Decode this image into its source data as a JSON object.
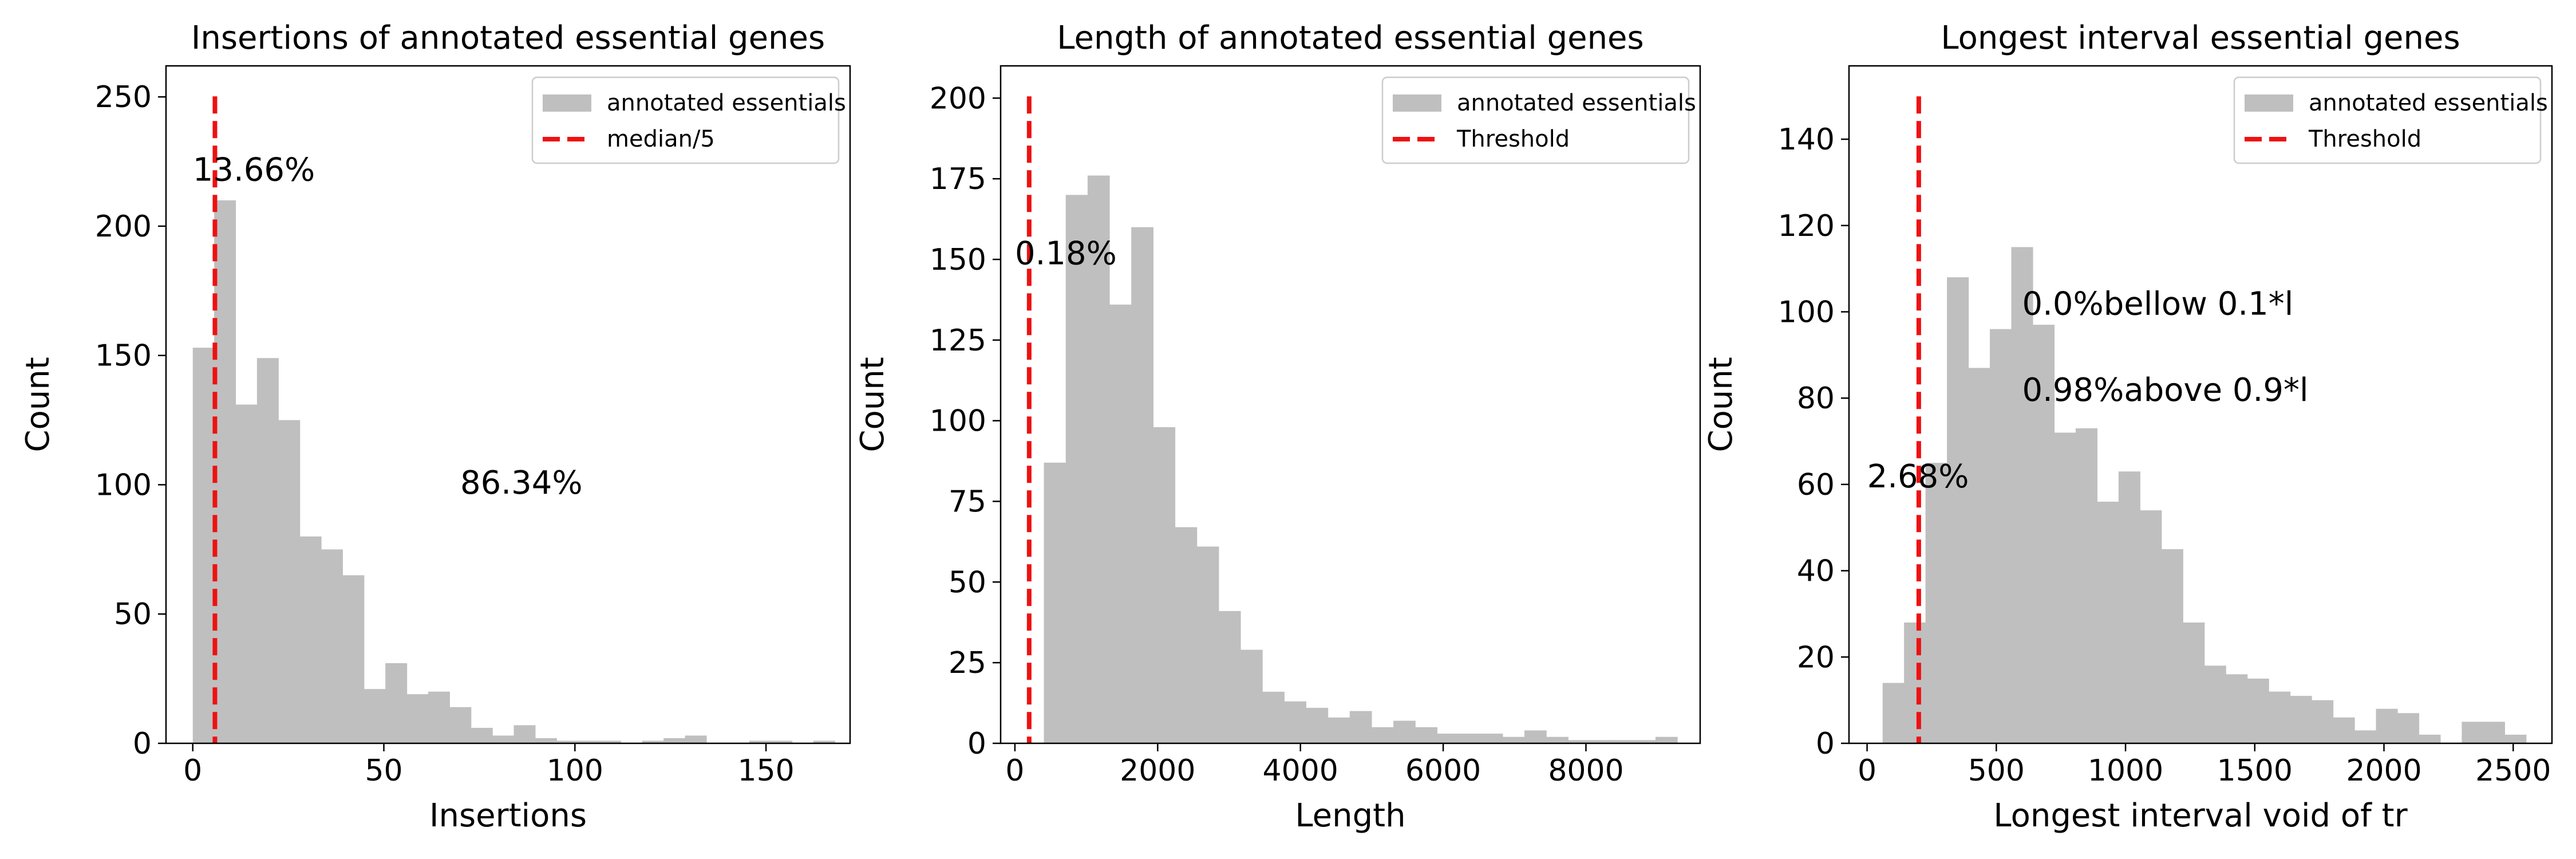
{
  "colors": {
    "bar": "#bfbfbf",
    "threshold": "#ee1111",
    "axis": "#000000",
    "background": "#ffffff"
  },
  "chart_data": [
    {
      "type": "bar",
      "title": "Insertions of annotated essential genes",
      "xlabel": "Insertions",
      "ylabel": "Count",
      "xlim": [
        -7,
        172
      ],
      "ylim": [
        0,
        262
      ],
      "xticks": [
        0,
        50,
        100,
        150
      ],
      "yticks": [
        0,
        50,
        100,
        150,
        200,
        250
      ],
      "bin_start": 0,
      "bin_width": 5.6,
      "values": [
        153,
        210,
        131,
        149,
        125,
        80,
        75,
        65,
        21,
        31,
        19,
        20,
        14,
        6,
        3,
        7,
        2,
        1,
        1,
        1,
        0,
        1,
        2,
        3,
        0,
        0,
        1,
        1,
        0,
        1
      ],
      "threshold_x": 5.8,
      "threshold_label": "median/5",
      "legend": [
        "annotated essentials",
        "median/5"
      ],
      "legend_position": "upper right",
      "annotations": [
        {
          "text": "13.66%",
          "x": 0,
          "y": 222
        },
        {
          "text": "86.34%",
          "x": 70,
          "y": 101
        }
      ]
    },
    {
      "type": "bar",
      "title": "Length of annotated essential genes",
      "xlabel": "Length",
      "ylabel": "Count",
      "xlim": [
        -200,
        9600
      ],
      "ylim": [
        0,
        210
      ],
      "xticks": [
        0,
        2000,
        4000,
        6000,
        8000
      ],
      "yticks": [
        0,
        25,
        50,
        75,
        100,
        125,
        150,
        175,
        200
      ],
      "bin_start": 100,
      "bin_width": 306,
      "values": [
        0,
        87,
        170,
        176,
        136,
        160,
        98,
        67,
        61,
        41,
        29,
        16,
        13,
        11,
        8,
        10,
        5,
        7,
        5,
        3,
        3,
        3,
        2,
        4,
        2,
        1,
        1,
        1,
        1,
        2
      ],
      "threshold_x": 200,
      "threshold_label": "Threshold",
      "legend": [
        "annotated essentials",
        "Threshold"
      ],
      "legend_position": "upper right",
      "annotations": [
        {
          "text": "0.18%",
          "x": 0,
          "y": 152
        }
      ]
    },
    {
      "type": "bar",
      "title": "Longest interval essential genes",
      "xlabel": "Longest interval void of tr",
      "ylabel": "Count",
      "xlim": [
        -70,
        2650
      ],
      "ylim": [
        0,
        157
      ],
      "xticks": [
        0,
        500,
        1000,
        1500,
        2000,
        2500
      ],
      "yticks": [
        0,
        20,
        40,
        60,
        80,
        100,
        120,
        140
      ],
      "bin_start": 60,
      "bin_width": 83,
      "values": [
        14,
        28,
        65,
        108,
        87,
        96,
        115,
        97,
        72,
        73,
        56,
        63,
        54,
        45,
        28,
        18,
        16,
        15,
        12,
        11,
        10,
        6,
        3,
        8,
        7,
        2,
        0,
        5,
        5,
        2
      ],
      "threshold_x": 200,
      "threshold_label": "Threshold",
      "legend": [
        "annotated essentials",
        "Threshold"
      ],
      "legend_position": "upper right",
      "annotations": [
        {
          "text": "2.68%",
          "x": 0,
          "y": 62
        },
        {
          "text": "0.0%bellow 0.1*l",
          "x": 600,
          "y": 102
        },
        {
          "text": "0.98%above 0.9*l",
          "x": 600,
          "y": 82
        }
      ]
    }
  ]
}
